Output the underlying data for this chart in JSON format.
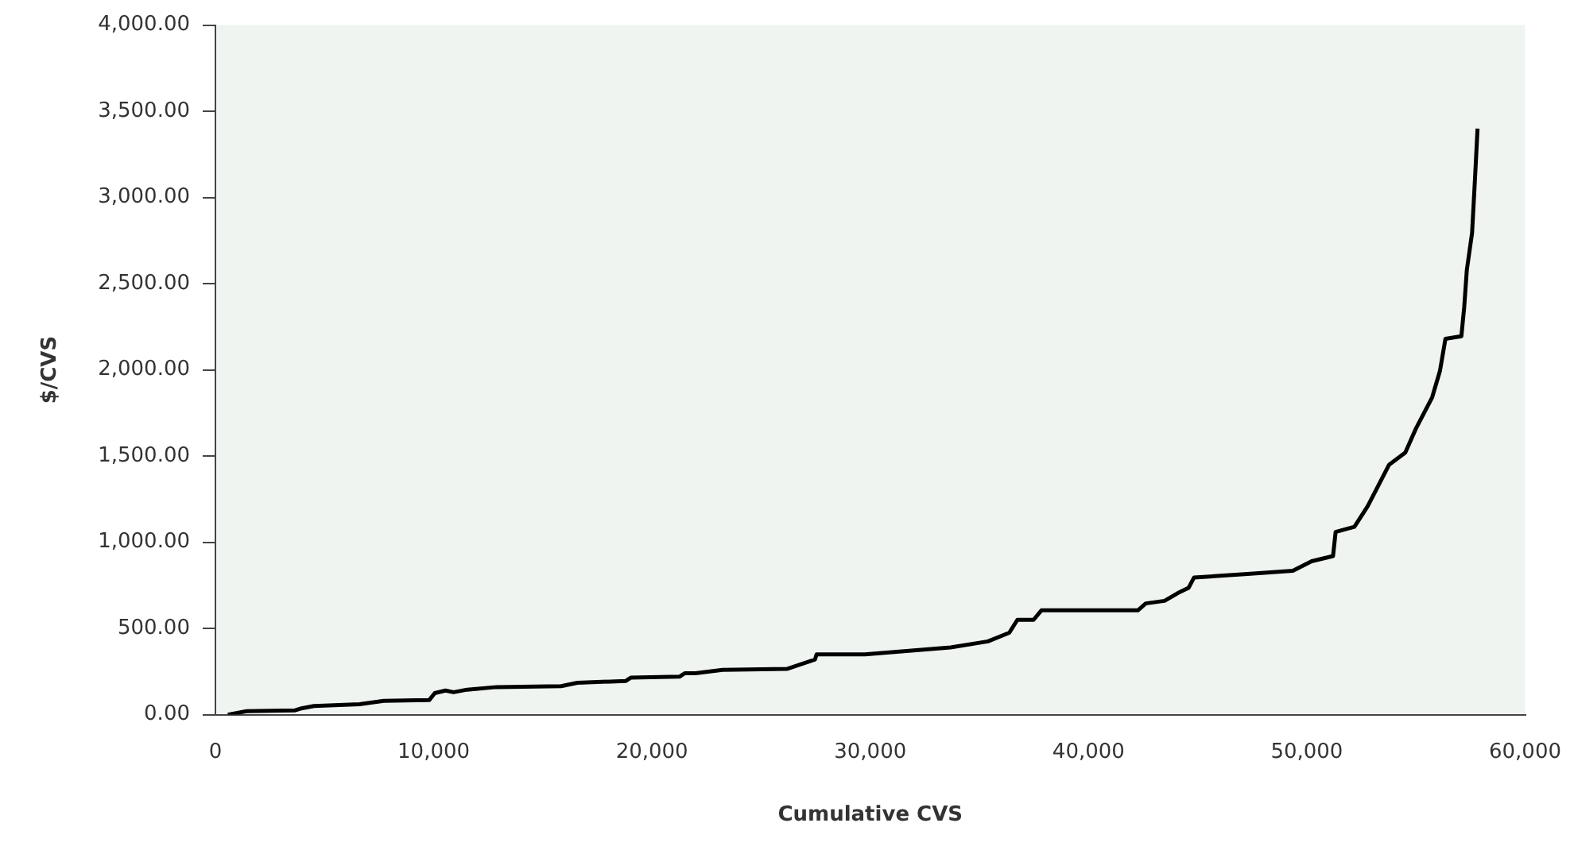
{
  "chart_data": {
    "type": "line",
    "xlabel": "Cumulative CVS",
    "ylabel": "$/CVS",
    "xlim": [
      0,
      60000
    ],
    "xticks": [
      0,
      {
        "value": 10000,
        "label": "10,000"
      },
      {
        "value": 20000,
        "label": "20,000"
      },
      {
        "value": 30000,
        "label": "30,000"
      },
      {
        "value": 40000,
        "label": "40,000"
      },
      {
        "value": 50000,
        "label": "50,000"
      },
      {
        "value": 60000,
        "label": "60,000"
      }
    ],
    "ylim": [
      0,
      4000
    ],
    "yticks": [
      {
        "value": 0,
        "label": "0.00"
      },
      {
        "value": 500,
        "label": "500.00"
      },
      {
        "value": 1000,
        "label": "1,000.00"
      },
      {
        "value": 1500,
        "label": "1,500.00"
      },
      {
        "value": 2000,
        "label": "2,000.00"
      },
      {
        "value": 2500,
        "label": "2,500.00"
      },
      {
        "value": 3000,
        "label": "3,000.00"
      },
      {
        "value": 3500,
        "label": "3,500.00"
      },
      {
        "value": 4000,
        "label": "4,000.00"
      }
    ],
    "grid": false,
    "legend": false,
    "marker": "none",
    "line_style": "solid",
    "series": [
      {
        "color": "#000000",
        "x": [
          570,
          1430,
          3650,
          3890,
          4510,
          6600,
          7710,
          9800,
          10050,
          10540,
          10910,
          11530,
          12880,
          15840,
          16580,
          18790,
          19040,
          21260,
          21500,
          21990,
          23230,
          26180,
          27470,
          27540,
          29750,
          33680,
          35390,
          36370,
          36740,
          37480,
          37840,
          42260,
          42620,
          43480,
          44090,
          44580,
          44830,
          47150,
          49360,
          50220,
          51200,
          51320,
          52180,
          52790,
          53770,
          54510,
          55000,
          55740,
          56100,
          56350,
          57080,
          57210,
          57330,
          57570,
          57700,
          57820
        ],
        "values": [
          0,
          20,
          25,
          35,
          50,
          60,
          80,
          85,
          125,
          140,
          130,
          145,
          160,
          165,
          185,
          195,
          215,
          220,
          240,
          240,
          260,
          265,
          320,
          350,
          350,
          390,
          425,
          475,
          550,
          550,
          605,
          605,
          645,
          660,
          705,
          735,
          795,
          815,
          835,
          890,
          920,
          1060,
          1090,
          1210,
          1450,
          1520,
          1660,
          1840,
          1995,
          2180,
          2195,
          2365,
          2580,
          2795,
          3100,
          3400
        ]
      }
    ]
  }
}
